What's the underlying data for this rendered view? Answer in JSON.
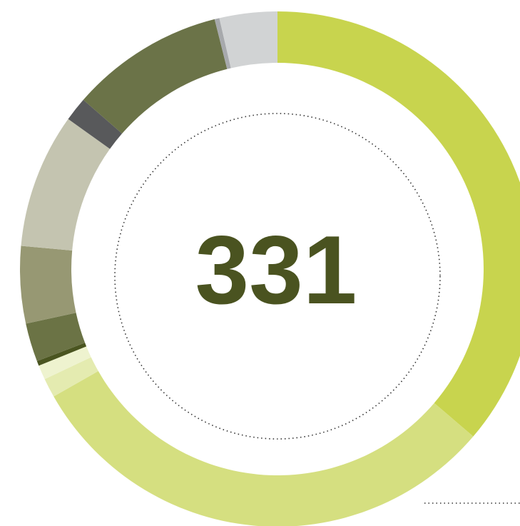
{
  "chart_data": {
    "type": "donut",
    "center_text": 331,
    "values": [
      120,
      101,
      4,
      3,
      1,
      8,
      16,
      28,
      5,
      32,
      1,
      12
    ],
    "colors": [
      "#c8d44e",
      "#d5df80",
      "#e4ebb0",
      "#eef3cf",
      "#4a5520",
      "#6b7345",
      "#979873",
      "#c4c4b0",
      "#58595b",
      "#6b7348",
      "#a7a9ac",
      "#d1d3d4"
    ]
  }
}
